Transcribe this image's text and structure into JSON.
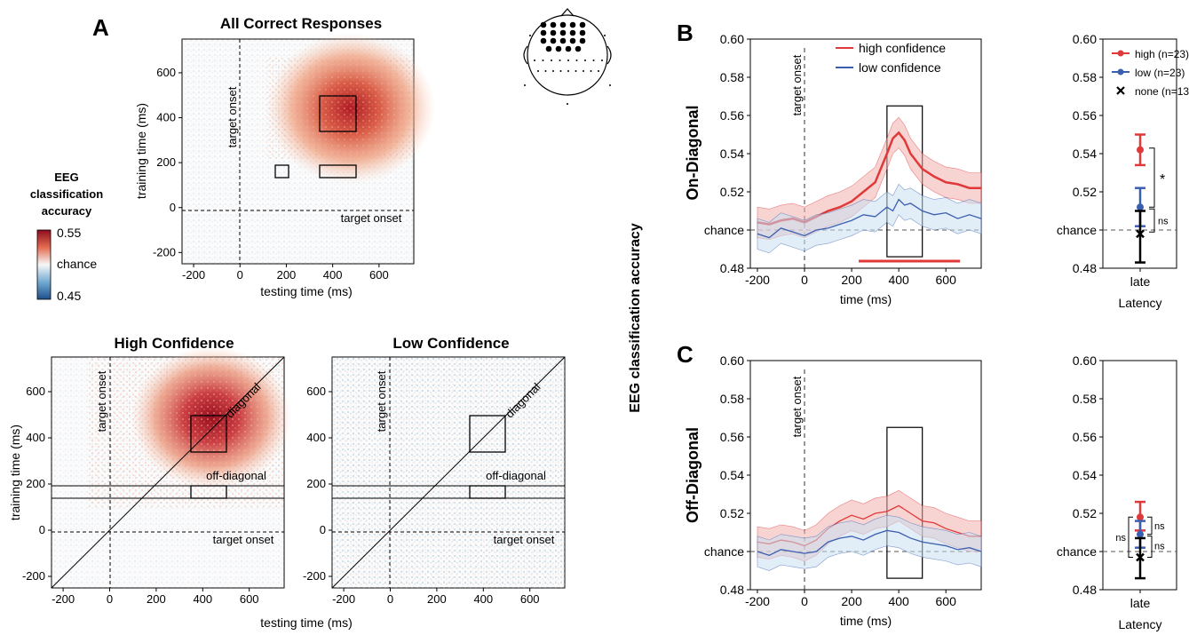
{
  "panels": {
    "A": "A",
    "B": "B",
    "C": "C"
  },
  "colorbar": {
    "title_lines": [
      "EEG",
      "classification",
      "accuracy"
    ],
    "max_label": "0.55",
    "mid_label": "chance",
    "min_label": "0.45"
  },
  "heatmaps": {
    "all": {
      "title": "All Correct Responses",
      "xlabel": "testing time (ms)",
      "ylabel": "training time (ms)"
    },
    "high": {
      "title": "High Confidence",
      "xlabel": "testing time (ms)",
      "ylabel": "training time (ms)"
    },
    "low": {
      "title": "Low Confidence",
      "xlabel": "",
      "ylabel": ""
    },
    "ticks": [
      "-200",
      "0",
      "200",
      "400",
      "600"
    ],
    "target_onset": "target onset",
    "diagonal_label": "diagonal",
    "off_diagonal_label": "off-diagonal"
  },
  "center_label": "EEG classification accuracy",
  "chart_data": [
    {
      "type": "line",
      "panel": "B",
      "row_label": "On-Diagonal",
      "xlabel": "time (ms)",
      "xticks": [
        "-200",
        "0",
        "200",
        "400",
        "600"
      ],
      "yticks": [
        "0.60",
        "0.58",
        "0.56",
        "0.54",
        "0.52",
        "chance",
        "0.48"
      ],
      "ylim": [
        0.48,
        0.6
      ],
      "xlim": [
        -230,
        750
      ],
      "annotation": "target onset",
      "legend": [
        "high confidence",
        "low confidence"
      ],
      "series": [
        {
          "name": "high confidence",
          "color": "#e0393a",
          "x": [
            -200,
            -150,
            -100,
            -50,
            0,
            50,
            100,
            150,
            200,
            250,
            300,
            350,
            375,
            400,
            425,
            450,
            500,
            550,
            600,
            650,
            700,
            750
          ],
          "y": [
            0.504,
            0.503,
            0.505,
            0.506,
            0.504,
            0.507,
            0.51,
            0.512,
            0.515,
            0.52,
            0.525,
            0.54,
            0.548,
            0.551,
            0.547,
            0.54,
            0.532,
            0.528,
            0.525,
            0.524,
            0.522,
            0.522
          ]
        },
        {
          "name": "low confidence",
          "color": "#3b5fb0",
          "x": [
            -200,
            -150,
            -100,
            -50,
            0,
            50,
            100,
            150,
            200,
            250,
            300,
            350,
            375,
            400,
            425,
            450,
            500,
            550,
            600,
            650,
            700,
            750
          ],
          "y": [
            0.498,
            0.496,
            0.501,
            0.499,
            0.497,
            0.5,
            0.501,
            0.503,
            0.505,
            0.508,
            0.507,
            0.512,
            0.51,
            0.516,
            0.513,
            0.514,
            0.51,
            0.508,
            0.509,
            0.506,
            0.508,
            0.506
          ]
        }
      ],
      "significance_bar": [
        230,
        660
      ]
    },
    {
      "type": "scatter",
      "panel": "B",
      "xlabel": "Latency",
      "category": "late",
      "yticks": [
        "0.60",
        "0.58",
        "0.56",
        "0.54",
        "0.52",
        "chance",
        "0.48"
      ],
      "ylim": [
        0.48,
        0.6
      ],
      "legend": [
        "high (n=23)",
        "low (n=23)",
        "none (n=13)"
      ],
      "points": [
        {
          "name": "high (n=23)",
          "y": 0.542,
          "low": 0.534,
          "high": 0.55,
          "color": "#e0393a"
        },
        {
          "name": "low (n=23)",
          "y": 0.512,
          "low": 0.502,
          "high": 0.522,
          "color": "#3b5fb0"
        },
        {
          "name": "none (n=13)",
          "y": 0.498,
          "low": 0.483,
          "high": 0.51,
          "color": "#000000"
        }
      ],
      "stats": [
        "*",
        "ns"
      ]
    },
    {
      "type": "line",
      "panel": "C",
      "row_label": "Off-Diagonal",
      "xlabel": "time (ms)",
      "xticks": [
        "-200",
        "0",
        "200",
        "400",
        "600"
      ],
      "yticks": [
        "0.60",
        "0.58",
        "0.56",
        "0.54",
        "0.52",
        "chance",
        "0.48"
      ],
      "ylim": [
        0.48,
        0.6
      ],
      "xlim": [
        -230,
        750
      ],
      "annotation": "target onset",
      "series": [
        {
          "name": "high confidence",
          "color": "#e0393a",
          "x": [
            -200,
            -150,
            -100,
            -50,
            0,
            50,
            100,
            150,
            200,
            250,
            300,
            350,
            400,
            450,
            500,
            550,
            600,
            650,
            700,
            750
          ],
          "y": [
            0.505,
            0.504,
            0.506,
            0.505,
            0.503,
            0.506,
            0.512,
            0.516,
            0.519,
            0.517,
            0.52,
            0.521,
            0.524,
            0.52,
            0.516,
            0.515,
            0.512,
            0.51,
            0.508,
            0.508
          ]
        },
        {
          "name": "low confidence",
          "color": "#3b5fb0",
          "x": [
            -200,
            -150,
            -100,
            -50,
            0,
            50,
            100,
            150,
            200,
            250,
            300,
            350,
            400,
            450,
            500,
            550,
            600,
            650,
            700,
            750
          ],
          "y": [
            0.5,
            0.498,
            0.501,
            0.5,
            0.499,
            0.5,
            0.505,
            0.507,
            0.508,
            0.506,
            0.509,
            0.511,
            0.51,
            0.507,
            0.505,
            0.504,
            0.503,
            0.501,
            0.502,
            0.5
          ]
        }
      ]
    },
    {
      "type": "scatter",
      "panel": "C",
      "xlabel": "Latency",
      "category": "late",
      "yticks": [
        "0.60",
        "0.58",
        "0.56",
        "0.54",
        "0.52",
        "chance",
        "0.48"
      ],
      "ylim": [
        0.48,
        0.6
      ],
      "points": [
        {
          "name": "high (n=23)",
          "y": 0.518,
          "low": 0.511,
          "high": 0.526,
          "color": "#e0393a"
        },
        {
          "name": "low (n=23)",
          "y": 0.509,
          "low": 0.502,
          "high": 0.516,
          "color": "#3b5fb0"
        },
        {
          "name": "none (n=13)",
          "y": 0.497,
          "low": 0.486,
          "high": 0.507,
          "color": "#000000"
        }
      ],
      "stats": [
        "ns",
        "ns",
        "ns"
      ]
    }
  ]
}
